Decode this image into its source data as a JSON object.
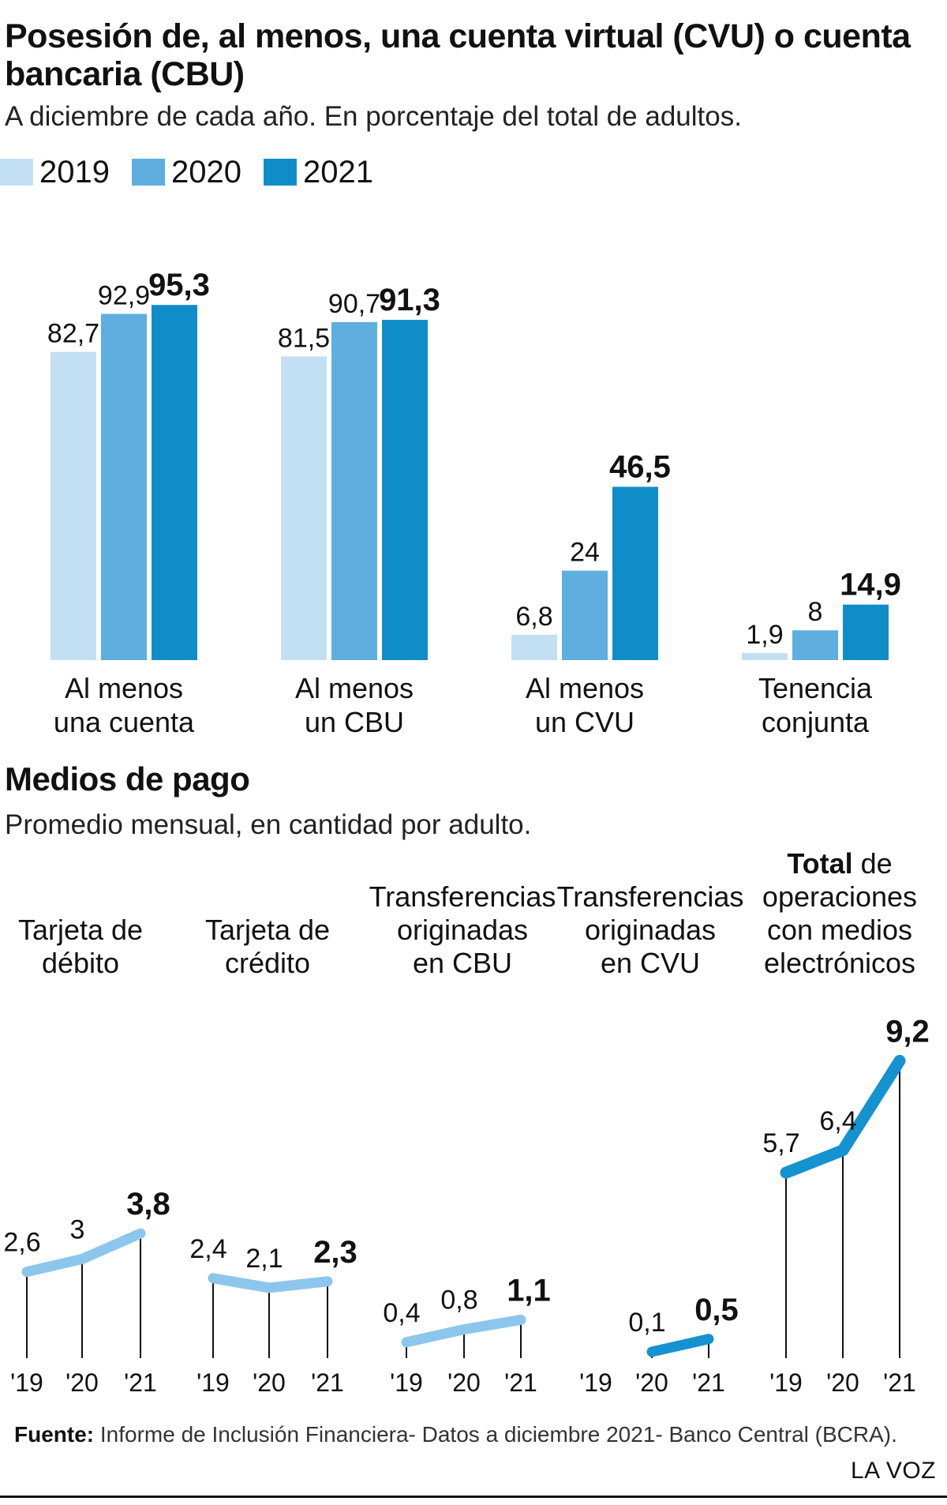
{
  "title": "Posesión de, al menos, una cuenta virtual (CVU) o cuenta bancaria (CBU)",
  "subtitle": "A diciembre de cada año. En porcentaje del total de adultos.",
  "colors": {
    "y2019": "#c3dff4",
    "y2020": "#5eaee0",
    "y2021": "#0f8dc9",
    "line_light": "#8cc6ec",
    "line_dark": "#1592d0"
  },
  "legend": [
    {
      "label": "2019",
      "color": "#c3dff4"
    },
    {
      "label": "2020",
      "color": "#5eaee0"
    },
    {
      "label": "2021",
      "color": "#0f8dc9"
    }
  ],
  "section2": {
    "title": "Medios de pago",
    "subtitle": "Promedio mensual, en cantidad por adulto."
  },
  "source_label": "Fuente:",
  "source_text": " Informe de Inclusión Financiera- Datos a diciembre 2021- Banco Central (BCRA).",
  "brand": "LA VOZ",
  "chart_data": [
    {
      "type": "bar",
      "categories": [
        [
          "Al menos",
          "una cuenta"
        ],
        [
          "Al menos",
          "un CBU"
        ],
        [
          "Al menos",
          "un CVU"
        ],
        [
          "Tenencia",
          "conjunta"
        ]
      ],
      "series": [
        {
          "name": "2019",
          "values": [
            82.7,
            81.5,
            6.8,
            1.9
          ],
          "labels": [
            "82,7",
            "81,5",
            "6,8",
            "1,9"
          ]
        },
        {
          "name": "2020",
          "values": [
            92.9,
            90.7,
            24,
            8
          ],
          "labels": [
            "92,9",
            "90,7",
            "24",
            "8"
          ]
        },
        {
          "name": "2021",
          "values": [
            95.3,
            91.3,
            46.5,
            14.9
          ],
          "labels": [
            "95,3",
            "91,3",
            "46,5",
            "14,9"
          ]
        }
      ],
      "ylim": [
        0,
        100
      ]
    },
    {
      "type": "line",
      "x": [
        "'19",
        "'20",
        "'21"
      ],
      "ylim": [
        0,
        9.2
      ],
      "panels": [
        {
          "title_lines": [
            "Tarjeta de",
            "débito"
          ],
          "values": [
            2.6,
            3,
            3.8
          ],
          "labels": [
            "2,6",
            "3",
            "3,8"
          ],
          "style": "light"
        },
        {
          "title_lines": [
            "Tarjeta de",
            "crédito"
          ],
          "values": [
            2.4,
            2.1,
            2.3
          ],
          "labels": [
            "2,4",
            "2,1",
            "2,3"
          ],
          "style": "light"
        },
        {
          "title_lines": [
            "Transferencias",
            "originadas",
            "en CBU"
          ],
          "values": [
            0.4,
            0.8,
            1.1
          ],
          "labels": [
            "0,4",
            "0,8",
            "1,1"
          ],
          "style": "light"
        },
        {
          "title_lines": [
            "Transferencias",
            "originadas",
            "en CVU"
          ],
          "values": [
            null,
            0.1,
            0.5
          ],
          "labels": [
            "",
            "0,1",
            "0,5"
          ],
          "style": "dark"
        },
        {
          "title_bold": "Total",
          "title_lines": [
            " de",
            "operaciones",
            "con medios",
            "electrónicos"
          ],
          "values": [
            5.7,
            6.4,
            9.2
          ],
          "labels": [
            "5,7",
            "6,4",
            "9,2"
          ],
          "style": "dark"
        }
      ]
    }
  ]
}
